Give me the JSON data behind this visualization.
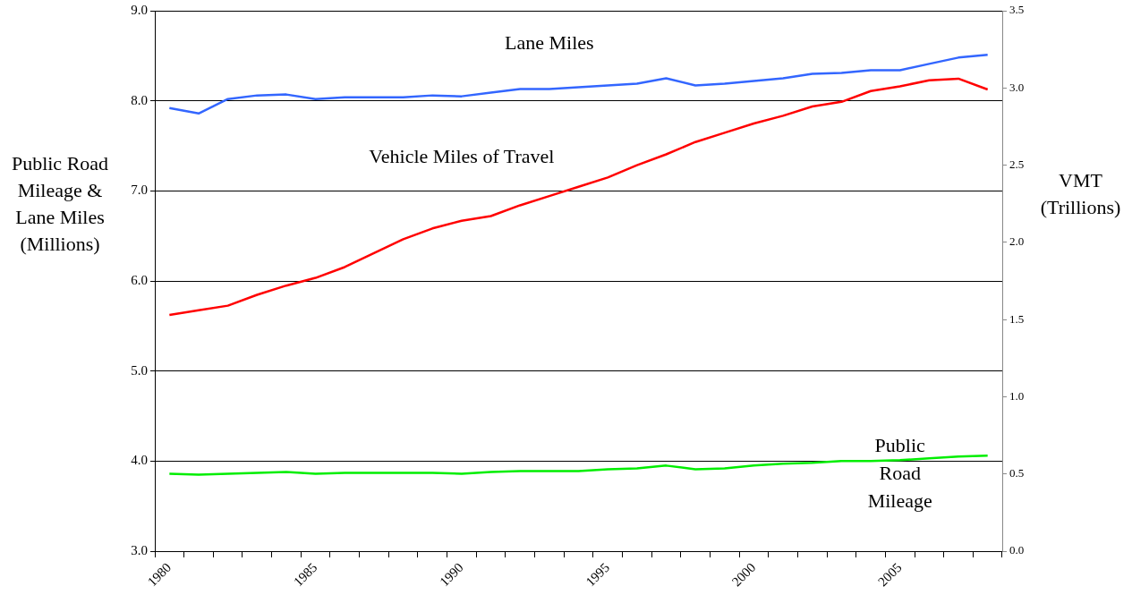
{
  "chart_data": {
    "type": "line",
    "ylabel": "Public Road Mileage & Lane Miles (Millions)",
    "y2label": "VMT (Trillions)",
    "categories": [
      "1980",
      null,
      null,
      null,
      null,
      "1985",
      null,
      null,
      null,
      null,
      "1990",
      null,
      null,
      null,
      null,
      "1995",
      null,
      null,
      null,
      null,
      "2000",
      null,
      null,
      null,
      null,
      "2005",
      null,
      null,
      null
    ],
    "series": [
      {
        "name": "Lane Miles",
        "color": "#3366ff",
        "values": [
          7.92,
          7.86,
          8.02,
          8.06,
          8.07,
          8.02,
          8.04,
          8.04,
          8.04,
          8.06,
          8.05,
          8.09,
          8.13,
          8.13,
          8.15,
          8.17,
          8.19,
          8.25,
          8.17,
          8.19,
          8.22,
          8.25,
          8.3,
          8.31,
          8.34,
          8.34,
          8.41,
          8.48,
          8.51
        ]
      },
      {
        "name": "Vehicle Miles of Travel",
        "color": "#ff0000",
        "axis": "y2",
        "values": [
          1.53,
          1.56,
          1.59,
          1.66,
          1.72,
          1.77,
          1.84,
          1.93,
          2.02,
          2.09,
          2.14,
          2.17,
          2.24,
          2.3,
          2.36,
          2.42,
          2.5,
          2.57,
          2.65,
          2.71,
          2.77,
          2.82,
          2.88,
          2.91,
          2.98,
          3.01,
          3.05,
          3.06,
          2.99
        ]
      },
      {
        "name": "Public Road Mileage",
        "color": "#00ee00",
        "values": [
          3.86,
          3.85,
          3.86,
          3.87,
          3.88,
          3.86,
          3.87,
          3.87,
          3.87,
          3.87,
          3.86,
          3.88,
          3.89,
          3.89,
          3.89,
          3.91,
          3.92,
          3.95,
          3.91,
          3.92,
          3.95,
          3.97,
          3.98,
          4.0,
          4.0,
          4.01,
          4.03,
          4.05,
          4.06
        ]
      }
    ],
    "ylim": [
      3,
      9
    ],
    "yticks": [
      {
        "value": 3,
        "label": "3.0"
      },
      {
        "value": 4,
        "label": "4.0"
      },
      {
        "value": 5,
        "label": "5.0"
      },
      {
        "value": 6,
        "label": "6.0"
      },
      {
        "value": 7,
        "label": "7.0"
      },
      {
        "value": 8,
        "label": "8.0"
      },
      {
        "value": 9,
        "label": "9.0"
      }
    ],
    "y2lim": [
      0,
      3.5
    ],
    "y2ticks": [
      {
        "value": 0,
        "label": "0.0"
      },
      {
        "value": 0.5,
        "label": "0.5"
      },
      {
        "value": 1,
        "label": "1.0"
      },
      {
        "value": 1.5,
        "label": "1.5"
      },
      {
        "value": 2,
        "label": "2.0"
      },
      {
        "value": 2.5,
        "label": "2.5"
      },
      {
        "value": 3,
        "label": "3.0"
      },
      {
        "value": 3.5,
        "label": "3.5"
      }
    ],
    "grid": "y",
    "legend": false,
    "marker": "none"
  }
}
